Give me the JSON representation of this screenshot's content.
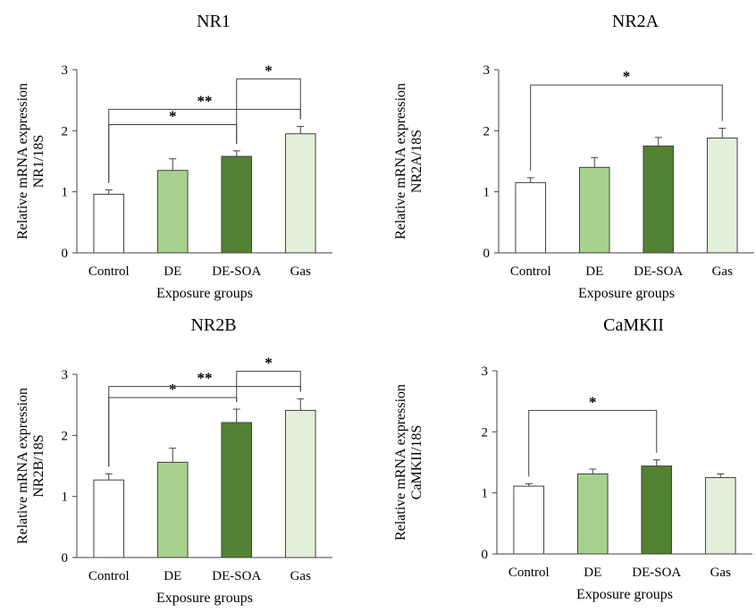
{
  "palette": {
    "Control": "#ffffff",
    "DE": "#a9d18e",
    "DE-SOA": "#548235",
    "Gas": "#e2efda",
    "edge": "#404040"
  },
  "chart_data": [
    {
      "type": "bar",
      "title": "NR1",
      "categories": [
        "Control",
        "DE",
        "DE-SOA",
        "Gas"
      ],
      "values": [
        0.96,
        1.35,
        1.58,
        1.95
      ],
      "errors": [
        0.07,
        0.19,
        0.09,
        0.12
      ],
      "xlabel": "Exposure groups",
      "ylabel": [
        "Relative mRNA expression",
        "NR1/18S"
      ],
      "ylim": [
        0,
        3
      ],
      "yticks": [
        "0",
        "1",
        "2",
        "3"
      ],
      "significance": [
        {
          "from": 0,
          "to": 2,
          "y": 2.1,
          "label": "*"
        },
        {
          "from": 0,
          "to": 3,
          "y": 2.35,
          "label": "**"
        },
        {
          "from": 2,
          "to": 3,
          "y": 2.85,
          "label": "*"
        }
      ]
    },
    {
      "type": "bar",
      "title": "NR2A",
      "categories": [
        "Control",
        "DE",
        "DE-SOA",
        "Gas"
      ],
      "values": [
        1.15,
        1.4,
        1.75,
        1.88
      ],
      "errors": [
        0.08,
        0.16,
        0.14,
        0.16
      ],
      "xlabel": "Exposure groups",
      "ylabel": [
        "Relative mRNA expression",
        "NR2A/18S"
      ],
      "ylim": [
        0,
        3
      ],
      "yticks": [
        "0",
        "1",
        "2",
        "3"
      ],
      "significance": [
        {
          "from": 0,
          "to": 3,
          "y": 2.75,
          "label": "*"
        }
      ]
    },
    {
      "type": "bar",
      "title": "NR2B",
      "categories": [
        "Control",
        "DE",
        "DE-SOA",
        "Gas"
      ],
      "values": [
        1.27,
        1.56,
        2.21,
        2.41
      ],
      "errors": [
        0.1,
        0.23,
        0.22,
        0.19
      ],
      "xlabel": "Exposure groups",
      "ylabel": [
        "Relative mRNA expression",
        "NR2B/18S"
      ],
      "ylim": [
        0,
        3
      ],
      "yticks": [
        "0",
        "1",
        "2",
        "3"
      ],
      "significance": [
        {
          "from": 0,
          "to": 2,
          "y": 2.62,
          "label": "*"
        },
        {
          "from": 0,
          "to": 3,
          "y": 2.8,
          "label": "**"
        },
        {
          "from": 2,
          "to": 3,
          "y": 3.05,
          "label": "*"
        }
      ]
    },
    {
      "type": "bar",
      "title": "CaMKII",
      "categories": [
        "Control",
        "DE",
        "DE-SOA",
        "Gas"
      ],
      "values": [
        1.11,
        1.31,
        1.44,
        1.25
      ],
      "errors": [
        0.04,
        0.08,
        0.1,
        0.06
      ],
      "xlabel": "Exposure groups",
      "ylabel": [
        "Relative mRNA expression",
        "CaMKII/18S"
      ],
      "ylim": [
        0,
        3
      ],
      "yticks": [
        "0",
        "1",
        "2",
        "3"
      ],
      "significance": [
        {
          "from": 0,
          "to": 2,
          "y": 2.35,
          "label": "*"
        }
      ]
    }
  ]
}
